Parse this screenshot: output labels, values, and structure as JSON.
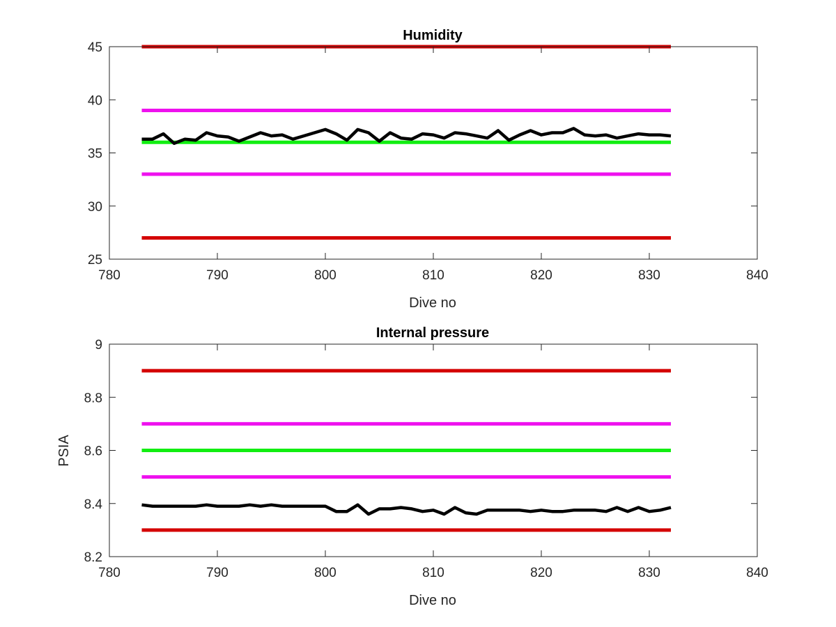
{
  "chart_data": [
    {
      "type": "line",
      "title": "Humidity",
      "xlabel": "Dive no",
      "ylabel": "",
      "xlim": [
        780,
        840
      ],
      "ylim": [
        25,
        45
      ],
      "xticks": [
        "780",
        "790",
        "800",
        "810",
        "820",
        "830",
        "840"
      ],
      "yticks": [
        "25",
        "30",
        "35",
        "40",
        "45"
      ],
      "grid": false,
      "reference_lines": [
        {
          "y": 45,
          "x_range": [
            783,
            832
          ],
          "color": "#d40000"
        },
        {
          "y": 39,
          "x_range": [
            783,
            832
          ],
          "color": "#ee11ee"
        },
        {
          "y": 36,
          "x_range": [
            783,
            832
          ],
          "color": "#11ee11"
        },
        {
          "y": 33,
          "x_range": [
            783,
            832
          ],
          "color": "#ee11ee"
        },
        {
          "y": 27,
          "x_range": [
            783,
            832
          ],
          "color": "#d40000"
        }
      ],
      "series": [
        {
          "color": "#000000",
          "x": [
            783,
            784,
            785,
            786,
            787,
            788,
            789,
            790,
            791,
            792,
            793,
            794,
            795,
            796,
            797,
            798,
            799,
            800,
            801,
            802,
            803,
            804,
            805,
            806,
            807,
            808,
            809,
            810,
            811,
            812,
            813,
            814,
            815,
            816,
            817,
            818,
            819,
            820,
            821,
            822,
            823,
            824,
            825,
            826,
            827,
            828,
            829,
            830,
            831,
            832
          ],
          "values": [
            36.3,
            36.3,
            36.8,
            35.9,
            36.3,
            36.2,
            36.9,
            36.6,
            36.5,
            36.1,
            36.5,
            36.9,
            36.6,
            36.7,
            36.3,
            36.6,
            36.9,
            37.2,
            36.8,
            36.2,
            37.2,
            36.9,
            36.1,
            36.9,
            36.4,
            36.3,
            36.8,
            36.7,
            36.4,
            36.9,
            36.8,
            36.6,
            36.4,
            37.1,
            36.2,
            36.7,
            37.1,
            36.7,
            36.9,
            36.9,
            37.3,
            36.7,
            36.6,
            36.7,
            36.4,
            36.6,
            36.8,
            36.7,
            36.7,
            36.6
          ]
        }
      ]
    },
    {
      "type": "line",
      "title": "Internal pressure",
      "xlabel": "Dive no",
      "ylabel": "PSIA",
      "xlim": [
        780,
        840
      ],
      "ylim": [
        8.2,
        9
      ],
      "xticks": [
        "780",
        "790",
        "800",
        "810",
        "820",
        "830",
        "840"
      ],
      "yticks": [
        "8.2",
        "8.4",
        "8.6",
        "8.8",
        "9"
      ],
      "grid": false,
      "reference_lines": [
        {
          "y": 8.9,
          "x_range": [
            783,
            832
          ],
          "color": "#d40000"
        },
        {
          "y": 8.7,
          "x_range": [
            783,
            832
          ],
          "color": "#ee11ee"
        },
        {
          "y": 8.6,
          "x_range": [
            783,
            832
          ],
          "color": "#11ee11"
        },
        {
          "y": 8.5,
          "x_range": [
            783,
            832
          ],
          "color": "#ee11ee"
        },
        {
          "y": 8.3,
          "x_range": [
            783,
            832
          ],
          "color": "#d40000"
        }
      ],
      "series": [
        {
          "color": "#000000",
          "x": [
            783,
            784,
            785,
            786,
            787,
            788,
            789,
            790,
            791,
            792,
            793,
            794,
            795,
            796,
            797,
            798,
            799,
            800,
            801,
            802,
            803,
            804,
            805,
            806,
            807,
            808,
            809,
            810,
            811,
            812,
            813,
            814,
            815,
            816,
            817,
            818,
            819,
            820,
            821,
            822,
            823,
            824,
            825,
            826,
            827,
            828,
            829,
            830,
            831,
            832
          ],
          "values": [
            8.395,
            8.39,
            8.39,
            8.39,
            8.39,
            8.39,
            8.395,
            8.39,
            8.39,
            8.39,
            8.395,
            8.39,
            8.395,
            8.39,
            8.39,
            8.39,
            8.39,
            8.39,
            8.37,
            8.37,
            8.395,
            8.36,
            8.38,
            8.38,
            8.385,
            8.38,
            8.37,
            8.375,
            8.36,
            8.385,
            8.365,
            8.36,
            8.375,
            8.375,
            8.375,
            8.375,
            8.37,
            8.375,
            8.37,
            8.37,
            8.375,
            8.375,
            8.375,
            8.37,
            8.385,
            8.37,
            8.385,
            8.37,
            8.375,
            8.385
          ]
        }
      ]
    }
  ]
}
